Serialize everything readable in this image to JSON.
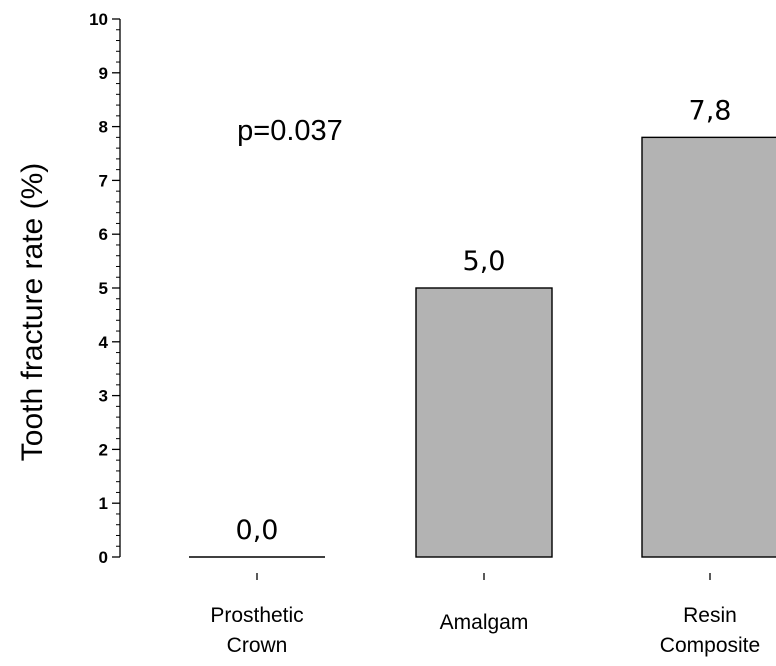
{
  "chart_data": {
    "type": "bar",
    "categories": [
      [
        "Prosthetic",
        "Crown"
      ],
      [
        "Amalgam"
      ],
      [
        "Resin",
        "Composite"
      ]
    ],
    "values": [
      0.0,
      5.0,
      7.8
    ],
    "data_labels": [
      "0,0",
      "5,0",
      "7,8"
    ],
    "ylabel": "Tooth fracture rate (%)",
    "xlabel": "",
    "ylim": [
      0,
      10
    ],
    "yticks": [
      "0",
      "1",
      "2",
      "3",
      "4",
      "5",
      "6",
      "7",
      "8",
      "9",
      "10"
    ],
    "annotation": "p=0.037",
    "bar_color": "#b3b3b3",
    "grid": false
  }
}
